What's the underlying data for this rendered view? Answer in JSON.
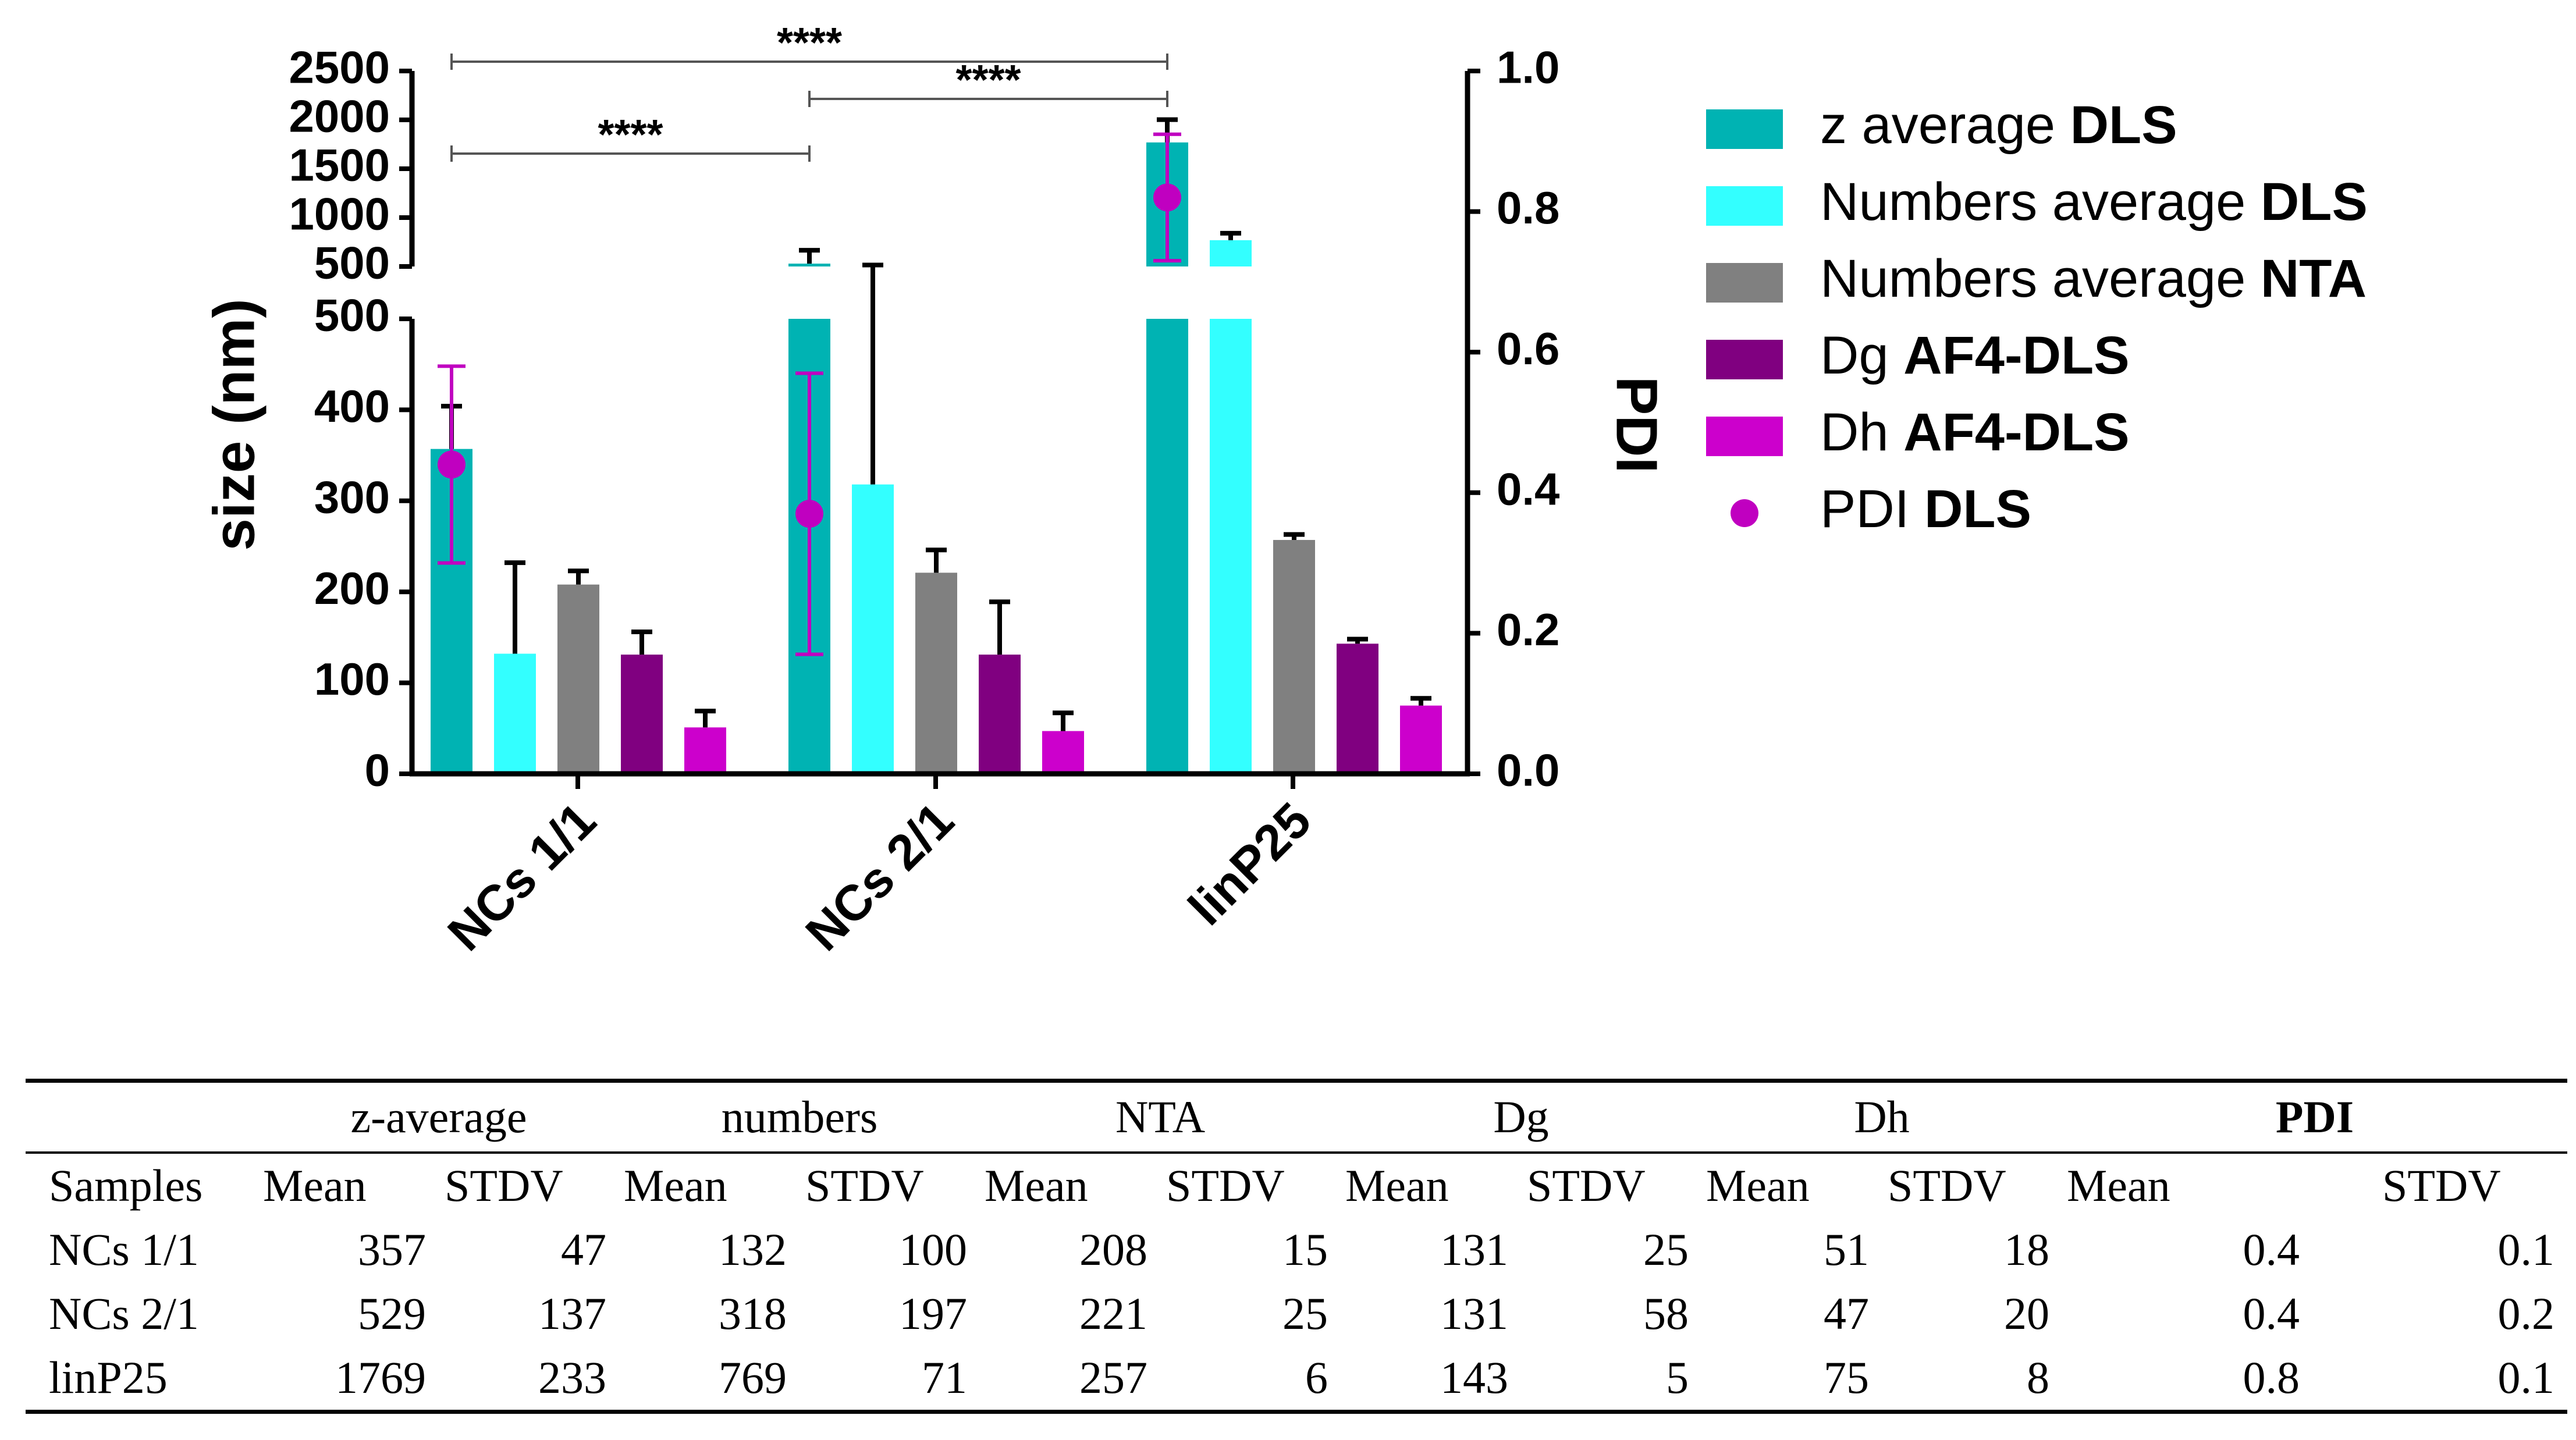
{
  "colors": {
    "z_average_dls": "#00b3b3",
    "numbers_average_dls": "#33ffff",
    "numbers_average_nta": "#808080",
    "dg_af4_dls": "#800080",
    "dh_af4_dls": "#cc00cc",
    "pdi_dls": "#c000c0"
  },
  "chart_data": {
    "type": "bar",
    "categories": [
      "NCs 1/1",
      "NCs 2/1",
      "linP25"
    ],
    "ylabel": "size (nm)",
    "y2label": "PDI",
    "y_axis_lower": {
      "range": [
        0,
        500
      ],
      "ticks": [
        "0",
        "100",
        "200",
        "300",
        "400",
        "500"
      ]
    },
    "y_axis_upper": {
      "range": [
        500,
        2500
      ],
      "ticks": [
        "500",
        "1000",
        "1500",
        "2000",
        "2500"
      ]
    },
    "y2_axis": {
      "range": [
        0.0,
        1.0
      ],
      "ticks": [
        "0.0",
        "0.2",
        "0.4",
        "0.6",
        "0.8",
        "1.0"
      ]
    },
    "series": [
      {
        "name": "z average",
        "method": "DLS",
        "color_key": "z_average_dls",
        "values": [
          357,
          529,
          1769
        ],
        "errors": [
          47,
          137,
          233
        ]
      },
      {
        "name": "Numbers average",
        "method": "DLS",
        "color_key": "numbers_average_dls",
        "values": [
          132,
          318,
          769
        ],
        "errors": [
          100,
          197,
          71
        ]
      },
      {
        "name": "Numbers average",
        "method": "NTA",
        "color_key": "numbers_average_nta",
        "values": [
          208,
          221,
          257
        ],
        "errors": [
          15,
          25,
          6
        ]
      },
      {
        "name": "Dg",
        "method": "AF4-DLS",
        "color_key": "dg_af4_dls",
        "values": [
          131,
          131,
          143
        ],
        "errors": [
          25,
          58,
          5
        ]
      },
      {
        "name": "Dh",
        "method": "AF4-DLS",
        "color_key": "dh_af4_dls",
        "values": [
          51,
          47,
          75
        ],
        "errors": [
          18,
          20,
          8
        ]
      }
    ],
    "pdi_series": {
      "name": "PDI",
      "method": "DLS",
      "color_key": "pdi_dls",
      "values": [
        0.44,
        0.37,
        0.82
      ],
      "errors": [
        0.14,
        0.2,
        0.09
      ]
    },
    "significance": [
      {
        "from": "NCs 1/1",
        "to": "linP25",
        "label": "****"
      },
      {
        "from": "NCs 2/1",
        "to": "linP25",
        "label": "****"
      },
      {
        "from": "NCs 1/1",
        "to": "NCs 2/1",
        "label": "****"
      }
    ],
    "legend_position": "right"
  },
  "table": {
    "group_headers": [
      "z-average",
      "numbers",
      "NTA",
      "Dg",
      "Dh",
      "PDI"
    ],
    "col_headers": [
      "Samples",
      "Mean",
      "STDV",
      "Mean",
      "STDV",
      "Mean",
      "STDV",
      "Mean",
      "STDV",
      "Mean",
      "STDV",
      "Mean",
      "STDV"
    ],
    "rows": [
      [
        "NCs 1/1",
        "357",
        "47",
        "132",
        "100",
        "208",
        "15",
        "131",
        "25",
        "51",
        "18",
        "0.4",
        "0.1"
      ],
      [
        "NCs 2/1",
        "529",
        "137",
        "318",
        "197",
        "221",
        "25",
        "131",
        "58",
        "47",
        "20",
        "0.4",
        "0.2"
      ],
      [
        "linP25",
        "1769",
        "233",
        "769",
        "71",
        "257",
        "6",
        "143",
        "5",
        "75",
        "8",
        "0.8",
        "0.1"
      ]
    ]
  }
}
